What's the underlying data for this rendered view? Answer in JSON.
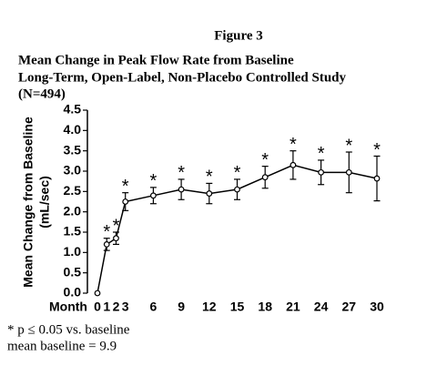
{
  "chart_data": {
    "type": "line",
    "title": "Figure 3",
    "subtitle": [
      "Mean Change in Peak Flow Rate from Baseline",
      "Long-Term, Open-Label, Non-Placebo Controlled Study",
      "(N=494)"
    ],
    "ylabel": [
      "Mean Change from Baseline",
      "(mL/sec)"
    ],
    "xlabel": "Month",
    "x": [
      0,
      1,
      2,
      3,
      6,
      9,
      12,
      15,
      18,
      21,
      24,
      27,
      30
    ],
    "series": [
      {
        "color": "#000000",
        "values": [
          0,
          1.2,
          1.35,
          2.25,
          2.4,
          2.55,
          2.45,
          2.55,
          2.85,
          3.15,
          2.97,
          2.97,
          2.82
        ],
        "errors": [
          0,
          0.15,
          0.15,
          0.22,
          0.2,
          0.25,
          0.25,
          0.25,
          0.27,
          0.35,
          0.3,
          0.5,
          0.55
        ]
      }
    ],
    "significant": [
      false,
      true,
      true,
      true,
      true,
      true,
      true,
      true,
      true,
      true,
      true,
      true,
      true
    ],
    "significance_mark": "*",
    "xlim": [
      0,
      30
    ],
    "xticks": [
      0,
      1,
      2,
      3,
      6,
      9,
      12,
      15,
      18,
      21,
      24,
      27,
      30
    ],
    "ylim": [
      0,
      4.5
    ],
    "yticks": [
      {
        "value": 0,
        "label": "0.0"
      },
      0.5,
      {
        "value": 1,
        "label": "1.0"
      },
      1.5,
      {
        "value": 2,
        "label": "2.0"
      },
      2.5,
      {
        "value": 3,
        "label": "3.0"
      },
      3.5,
      {
        "value": 4,
        "label": "4.0"
      },
      4.5
    ],
    "footnotes": [
      "* p ≤ 0.05 vs. baseline",
      "mean baseline = 9.9"
    ]
  }
}
